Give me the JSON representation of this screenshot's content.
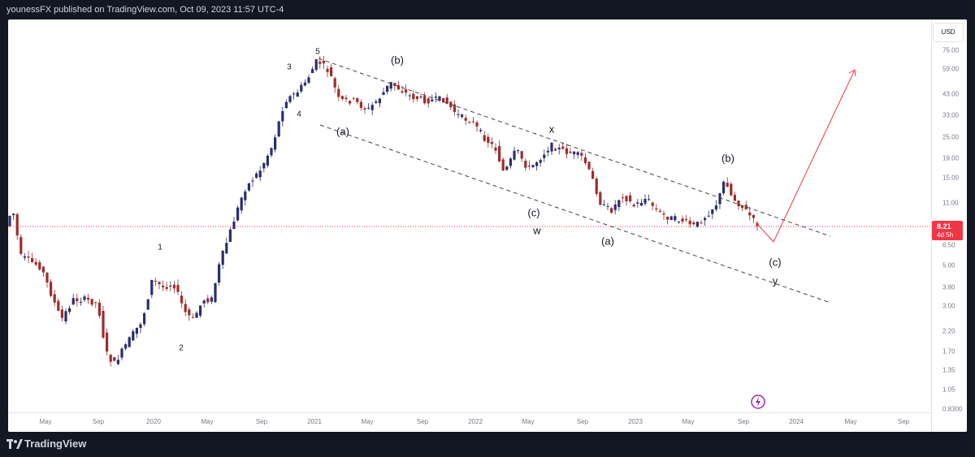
{
  "header": {
    "publisher_line": "younessFX published on TradingView.com, Oct 09, 2023 11:57 UTC-4"
  },
  "toolbar": {
    "currency_button": "USD"
  },
  "last_price": {
    "price": "8.21",
    "countdown": "4d 5h",
    "color": "#f23645"
  },
  "chart_data": {
    "type": "candlestick",
    "scale": "log",
    "x_ticks": [
      "May",
      "Sep",
      "2020",
      "May",
      "Sep",
      "2021",
      "May",
      "Sep",
      "2022",
      "May",
      "Sep",
      "2023",
      "May",
      "Sep",
      "2024",
      "May",
      "Sep"
    ],
    "y_ticks": [
      "75.00",
      "59.00",
      "43.00",
      "33.00",
      "25.00",
      "19.00",
      "15.00",
      "11.00",
      "8.21",
      "6.50",
      "5.00",
      "3.80",
      "3.00",
      "2.20",
      "1.70",
      "1.35",
      "1.05",
      "0.8300"
    ],
    "ylim": [
      0.8,
      90
    ],
    "up_color": "#2a2e6e",
    "down_color": "#a02c2c",
    "wave_labels": [
      "1",
      "2",
      "3",
      "4",
      "5",
      "(a)",
      "(b)",
      "(c)",
      "w",
      "x",
      "(a)",
      "(b)",
      "(c)",
      "y"
    ],
    "projection_color": "#f23645"
  },
  "footer": {
    "brand": "TradingView",
    "logo_icon": "tradingview-logo-icon"
  }
}
